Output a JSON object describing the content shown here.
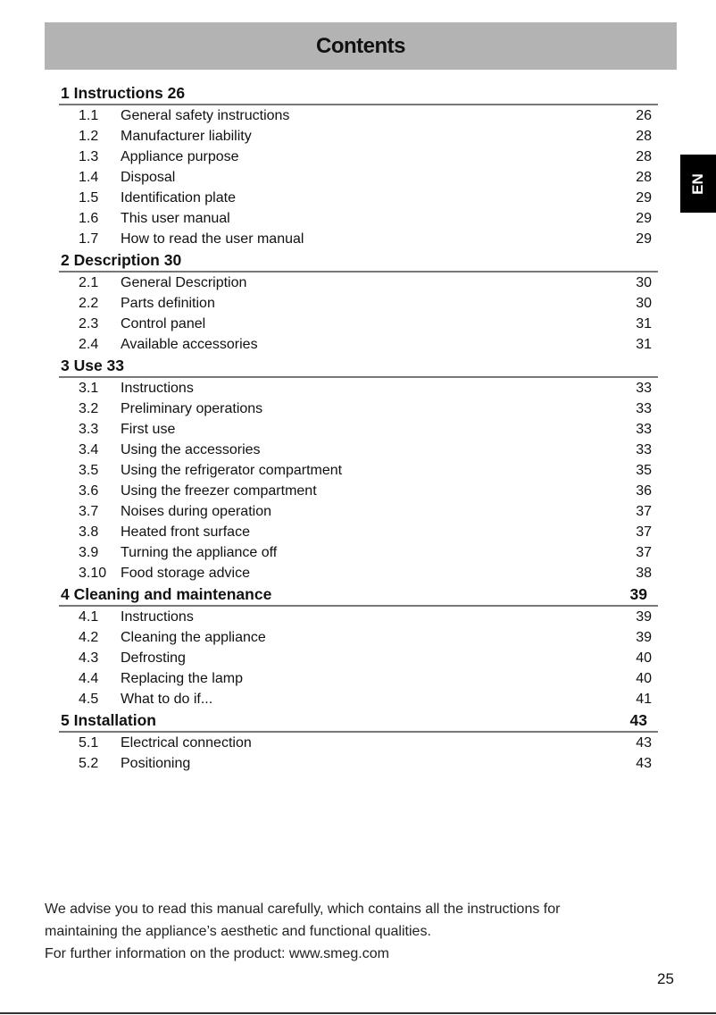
{
  "title": "Contents",
  "language_tab": "EN",
  "sections": [
    {
      "heading": "1 Instructions 26",
      "page": "",
      "items": [
        {
          "num": "1.1",
          "text": "General safety instructions",
          "page": "26"
        },
        {
          "num": "1.2",
          "text": "Manufacturer liability",
          "page": "28"
        },
        {
          "num": "1.3",
          "text": "Appliance purpose",
          "page": "28"
        },
        {
          "num": "1.4",
          "text": "Disposal",
          "page": "28"
        },
        {
          "num": "1.5",
          "text": "Identification plate",
          "page": "29"
        },
        {
          "num": "1.6",
          "text": "This user manual",
          "page": "29"
        },
        {
          "num": "1.7",
          "text": "How to read the user manual",
          "page": "29"
        }
      ]
    },
    {
      "heading": "2 Description 30",
      "page": "",
      "items": [
        {
          "num": "2.1",
          "text": "General Description",
          "page": "30"
        },
        {
          "num": "2.2",
          "text": "Parts definition",
          "page": "30"
        },
        {
          "num": "2.3",
          "text": "Control panel",
          "page": "31"
        },
        {
          "num": "2.4",
          "text": "Available accessories",
          "page": "31"
        }
      ]
    },
    {
      "heading": "3 Use 33",
      "page": "",
      "items": [
        {
          "num": "3.1",
          "text": "Instructions",
          "page": "33"
        },
        {
          "num": "3.2",
          "text": "Preliminary operations",
          "page": "33"
        },
        {
          "num": "3.3",
          "text": "First use",
          "page": "33"
        },
        {
          "num": "3.4",
          "text": "Using the accessories",
          "page": "33"
        },
        {
          "num": "3.5",
          "text": "Using the refrigerator compartment",
          "page": "35"
        },
        {
          "num": "3.6",
          "text": "Using the freezer compartment",
          "page": "36"
        },
        {
          "num": "3.7",
          "text": "Noises during operation",
          "page": "37"
        },
        {
          "num": "3.8",
          "text": "Heated front surface",
          "page": "37"
        },
        {
          "num": "3.9",
          "text": "Turning the appliance off",
          "page": "37"
        },
        {
          "num": "3.10",
          "text": "Food storage advice",
          "page": "38"
        }
      ]
    },
    {
      "heading": "4 Cleaning and maintenance",
      "page": "39",
      "items": [
        {
          "num": "4.1",
          "text": "Instructions",
          "page": "39"
        },
        {
          "num": "4.2",
          "text": "Cleaning the appliance",
          "page": "39"
        },
        {
          "num": "4.3",
          "text": "Defrosting",
          "page": "40"
        },
        {
          "num": "4.4",
          "text": "Replacing the lamp",
          "page": "40"
        },
        {
          "num": "4.5",
          "text": "What to do if...",
          "page": "41"
        }
      ]
    },
    {
      "heading": "5 Installation",
      "page": "43",
      "items": [
        {
          "num": "5.1",
          "text": "Electrical connection",
          "page": "43"
        },
        {
          "num": "5.2",
          "text": "Positioning",
          "page": "43"
        }
      ]
    }
  ],
  "footer": {
    "line1": "We advise you to read this manual carefully, which contains all the instructions for",
    "line2": "maintaining the appliance’s aesthetic and functional qualities.",
    "line3": "For further information on the product: www.smeg.com"
  },
  "page_number": "25",
  "colors": {
    "title_bar": "#b3b3b3",
    "language_tab": "#000000"
  }
}
